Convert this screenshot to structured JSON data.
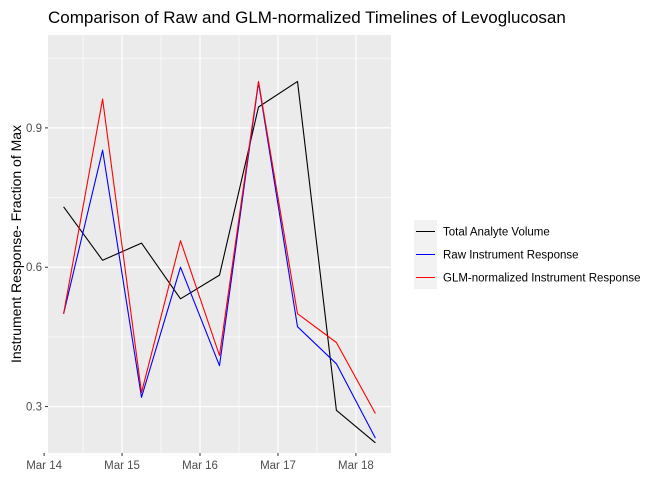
{
  "chart_data": {
    "type": "line",
    "title": "Comparison of Raw and GLM-normalized Timelines of Levoglucosan",
    "xlabel": "",
    "ylabel": "Instrument Response- Fraction of Max",
    "x": [
      "Mar 14 06:00",
      "Mar 14 18:00",
      "Mar 15 06:00",
      "Mar 15 18:00",
      "Mar 16 06:00",
      "Mar 16 18:00",
      "Mar 17 06:00",
      "Mar 17 18:00",
      "Mar 18 06:00"
    ],
    "x_ticks": [
      "Mar 14",
      "Mar 15",
      "Mar 16",
      "Mar 17",
      "Mar 18"
    ],
    "y_ticks": [
      0.3,
      0.6,
      0.9
    ],
    "ylim": [
      0.2,
      1.1
    ],
    "grid": true,
    "legend_position": "right",
    "series": [
      {
        "name": "Total Analyte Volume",
        "color": "#000000",
        "values": [
          0.73,
          0.615,
          0.652,
          0.532,
          0.583,
          0.945,
          1.0,
          0.292,
          0.222
        ]
      },
      {
        "name": "Raw Instrument Response",
        "color": "#0000ff",
        "values": [
          0.5,
          0.852,
          0.32,
          0.6,
          0.388,
          0.998,
          0.472,
          0.392,
          0.232
        ]
      },
      {
        "name": "GLM-normalized Instrument Response",
        "color": "#ff0000",
        "values": [
          0.5,
          0.962,
          0.33,
          0.657,
          0.41,
          1.0,
          0.5,
          0.438,
          0.285
        ]
      }
    ]
  }
}
